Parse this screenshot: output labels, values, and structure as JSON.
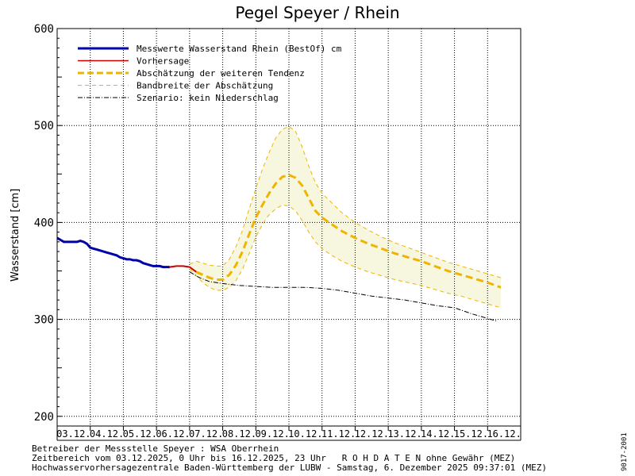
{
  "chart_data": {
    "type": "line",
    "title": "Pegel Speyer / Rhein",
    "ylabel": "Wasserstand [cm]",
    "xlabel": "",
    "ylim": [
      190,
      600
    ],
    "yticks": [
      200,
      300,
      400,
      500,
      600
    ],
    "grid": true,
    "legend_placement": "top-left",
    "categories": [
      "03.12.",
      "04.12.",
      "05.12.",
      "06.12.",
      "07.12.",
      "08.12.",
      "09.12.",
      "10.12.",
      "11.12.",
      "12.12.",
      "13.12.",
      "14.12.",
      "15.12.",
      "16.12."
    ],
    "series": [
      {
        "name": "Messwerte Wasserstand Rhein (BestOf)  cm",
        "style": "measured",
        "color": "#0000aa",
        "x": [
          0,
          0.1,
          0.2,
          0.3,
          0.4,
          0.5,
          0.6,
          0.7,
          0.8,
          0.9,
          1.0,
          1.1,
          1.2,
          1.3,
          1.4,
          1.5,
          1.6,
          1.7,
          1.8,
          1.9,
          2.0,
          2.1,
          2.2,
          2.3,
          2.4,
          2.5,
          2.6,
          2.7,
          2.8,
          2.9,
          3.0,
          3.1,
          3.2,
          3.4
        ],
        "y": [
          384,
          382,
          380,
          380,
          380,
          380,
          380,
          381,
          380,
          378,
          374,
          373,
          372,
          371,
          370,
          369,
          368,
          367,
          366,
          364,
          363,
          362,
          362,
          361,
          361,
          360,
          358,
          357,
          356,
          355,
          355,
          355,
          354,
          354
        ]
      },
      {
        "name": "Vorhersage",
        "style": "forecast",
        "color": "#cc0000",
        "x": [
          3.4,
          3.6,
          3.8,
          4.0,
          4.2
        ],
        "y": [
          354,
          355,
          355,
          354,
          349
        ]
      },
      {
        "name": "Abschätzung der weiteren Tendenz",
        "style": "tendency",
        "color": "#f0b400",
        "x": [
          4.2,
          4.4,
          4.6,
          4.8,
          5.0,
          5.2,
          5.4,
          5.6,
          5.8,
          6.0,
          6.2,
          6.4,
          6.6,
          6.8,
          7.0,
          7.2,
          7.4,
          7.6,
          7.8,
          8.0,
          8.3,
          8.6,
          9.0,
          9.4,
          9.8,
          10.2,
          10.6,
          11.0,
          11.4,
          11.8,
          12.2,
          12.6,
          13.0,
          13.4
        ],
        "y": [
          349,
          346,
          343,
          341,
          341,
          346,
          356,
          370,
          388,
          405,
          418,
          430,
          440,
          447,
          449,
          446,
          438,
          425,
          412,
          405,
          398,
          391,
          384,
          378,
          373,
          368,
          364,
          360,
          355,
          350,
          346,
          342,
          338,
          333
        ]
      },
      {
        "name": "Bandbreite der Abschätzung",
        "style": "band",
        "color": "#f0b400",
        "fill": "#f7f7e0",
        "x": [
          4.0,
          4.2,
          4.4,
          4.6,
          4.8,
          5.0,
          5.2,
          5.4,
          5.6,
          5.8,
          6.0,
          6.2,
          6.4,
          6.6,
          6.8,
          7.0,
          7.2,
          7.4,
          7.6,
          7.8,
          8.0,
          8.3,
          8.6,
          9.0,
          9.4,
          9.8,
          10.2,
          10.6,
          11.0,
          11.4,
          11.8,
          12.2,
          12.6,
          13.0,
          13.4
        ],
        "upper": [
          357,
          360,
          358,
          356,
          355,
          355,
          362,
          375,
          392,
          414,
          435,
          455,
          472,
          487,
          496,
          499,
          494,
          478,
          458,
          441,
          430,
          420,
          410,
          400,
          392,
          385,
          379,
          374,
          369,
          364,
          359,
          355,
          351,
          347,
          343
        ],
        "lower": [
          352,
          345,
          338,
          333,
          330,
          330,
          333,
          340,
          352,
          368,
          385,
          398,
          408,
          414,
          418,
          417,
          412,
          402,
          390,
          380,
          373,
          366,
          360,
          354,
          349,
          345,
          341,
          338,
          335,
          331,
          327,
          324,
          320,
          316,
          312
        ]
      },
      {
        "name": "Szenario: kein Niederschlag",
        "style": "scenario",
        "color": "#000000",
        "x": [
          4.0,
          4.3,
          4.6,
          5.0,
          5.5,
          6.0,
          6.5,
          7.0,
          7.5,
          8.0,
          8.5,
          9.0,
          9.5,
          10.0,
          10.5,
          11.0,
          11.5,
          12.0,
          12.5,
          13.0,
          13.3
        ],
        "y": [
          349,
          343,
          339,
          337,
          335,
          334,
          333,
          333,
          333,
          332,
          330,
          327,
          324,
          322,
          320,
          317,
          314,
          312,
          306,
          301,
          298
        ]
      }
    ]
  },
  "footer": {
    "line1": "Betreiber der Messstelle Speyer : WSA Oberrhein",
    "line2": "Zeitbereich vom 03.12.2025, 0 Uhr bis 16.12.2025, 23 Uhr   R O H D A T E N ohne Gewähr (MEZ)",
    "line3": "Hochwasservorhersagezentrale Baden-Württemberg der LUBW - Samstag, 6. Dezember 2025 09:37:01 (MEZ)"
  },
  "side_code": "9017-2001"
}
